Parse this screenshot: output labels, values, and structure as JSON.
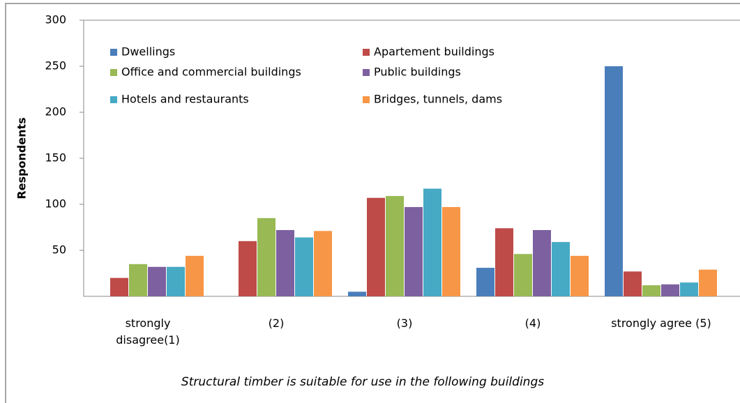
{
  "chart_data": {
    "type": "bar",
    "categories": [
      "strongly disagree(1)",
      "(2)",
      "(3)",
      "(4)",
      "strongly agree (5)"
    ],
    "series": [
      {
        "name": "Dwellings",
        "color": "#4a7ebb",
        "values": [
          0,
          0,
          5,
          31,
          250
        ]
      },
      {
        "name": "Apartement buildings",
        "color": "#be4b48",
        "values": [
          20,
          60,
          107,
          74,
          27
        ]
      },
      {
        "name": "Office and commercial buildings",
        "color": "#98b954",
        "values": [
          35,
          85,
          109,
          46,
          12
        ]
      },
      {
        "name": "Public buildings",
        "color": "#7d60a0",
        "values": [
          32,
          72,
          97,
          72,
          13
        ]
      },
      {
        "name": "Hotels and restaurants",
        "color": "#46aac5",
        "values": [
          32,
          64,
          117,
          59,
          15
        ]
      },
      {
        "name": "Bridges, tunnels, dams",
        "color": "#f79646",
        "values": [
          44,
          71,
          97,
          44,
          29
        ]
      }
    ],
    "y_label": "Respondents",
    "x_label": "Structural timber is suitable  for use  in the following buildings",
    "ylim": [
      0,
      300
    ],
    "yticks": [
      50,
      100,
      150,
      200,
      250,
      300
    ],
    "grid": false,
    "legend": "top"
  }
}
